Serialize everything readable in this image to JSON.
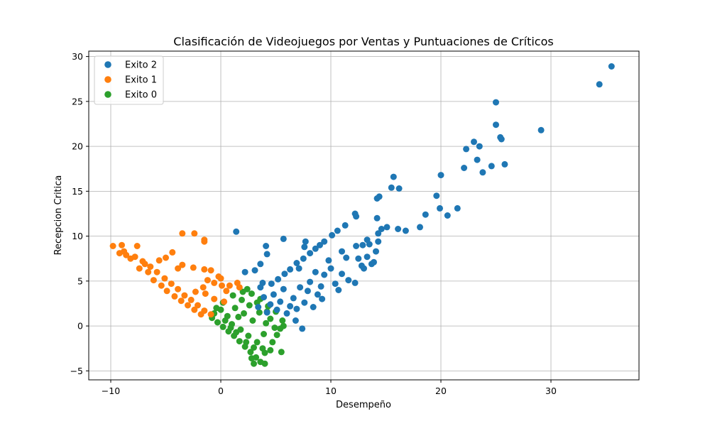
{
  "chart_data": {
    "type": "scatter",
    "title": "Clasificación de Videojuegos por Ventas y Puntuaciones de Críticos",
    "xlabel": "Desempeño",
    "ylabel": "Recepcion Critica",
    "xlim": [
      -12,
      38
    ],
    "ylim": [
      -6,
      30.6
    ],
    "xticks": [
      -10,
      0,
      10,
      20,
      30
    ],
    "yticks": [
      -5,
      0,
      5,
      10,
      15,
      20,
      25,
      30
    ],
    "grid": true,
    "legend_position": "top-left",
    "series": [
      {
        "name": "Exito 2",
        "color": "#1f77b4",
        "points": [
          [
            35.5,
            28.9
          ],
          [
            34.4,
            26.9
          ],
          [
            29.1,
            21.8
          ],
          [
            25.0,
            24.9
          ],
          [
            25.0,
            22.4
          ],
          [
            25.4,
            21.0
          ],
          [
            25.5,
            20.8
          ],
          [
            23.0,
            20.5
          ],
          [
            22.3,
            19.7
          ],
          [
            23.5,
            20.0
          ],
          [
            22.1,
            17.6
          ],
          [
            23.3,
            18.5
          ],
          [
            24.6,
            17.8
          ],
          [
            25.8,
            18.0
          ],
          [
            23.8,
            17.1
          ],
          [
            20.0,
            16.8
          ],
          [
            19.6,
            14.5
          ],
          [
            19.9,
            13.1
          ],
          [
            20.6,
            12.3
          ],
          [
            21.5,
            13.1
          ],
          [
            18.6,
            12.4
          ],
          [
            18.1,
            11.0
          ],
          [
            16.8,
            10.6
          ],
          [
            16.1,
            10.8
          ],
          [
            15.7,
            16.6
          ],
          [
            15.5,
            15.4
          ],
          [
            16.2,
            15.3
          ],
          [
            14.4,
            14.4
          ],
          [
            14.2,
            14.2
          ],
          [
            14.2,
            12.0
          ],
          [
            15.1,
            11.0
          ],
          [
            14.6,
            10.8
          ],
          [
            14.3,
            10.3
          ],
          [
            14.3,
            9.4
          ],
          [
            12.2,
            12.5
          ],
          [
            12.3,
            12.2
          ],
          [
            11.3,
            11.2
          ],
          [
            10.6,
            10.6
          ],
          [
            10.1,
            10.1
          ],
          [
            13.3,
            9.6
          ],
          [
            13.5,
            9.1
          ],
          [
            12.9,
            9.0
          ],
          [
            12.3,
            8.9
          ],
          [
            11.0,
            8.3
          ],
          [
            11.4,
            7.6
          ],
          [
            12.5,
            7.5
          ],
          [
            13.3,
            7.7
          ],
          [
            14.1,
            8.3
          ],
          [
            13.0,
            6.4
          ],
          [
            13.7,
            6.9
          ],
          [
            9.4,
            9.4
          ],
          [
            9.0,
            9.0
          ],
          [
            8.6,
            8.6
          ],
          [
            8.1,
            8.1
          ],
          [
            7.5,
            7.5
          ],
          [
            6.9,
            7.0
          ],
          [
            6.3,
            6.3
          ],
          [
            5.8,
            5.8
          ],
          [
            5.2,
            5.2
          ],
          [
            4.6,
            4.7
          ],
          [
            3.8,
            4.8
          ],
          [
            7.7,
            9.4
          ],
          [
            7.6,
            8.8
          ],
          [
            5.7,
            9.7
          ],
          [
            4.1,
            8.9
          ],
          [
            4.2,
            8.0
          ],
          [
            3.6,
            6.9
          ],
          [
            2.2,
            6.0
          ],
          [
            3.1,
            6.2
          ],
          [
            1.4,
            10.5
          ],
          [
            12.2,
            4.8
          ],
          [
            11.0,
            5.8
          ],
          [
            10.7,
            4.0
          ],
          [
            10.0,
            6.4
          ],
          [
            9.8,
            7.3
          ],
          [
            9.4,
            5.7
          ],
          [
            9.1,
            4.4
          ],
          [
            8.8,
            3.5
          ],
          [
            8.1,
            4.9
          ],
          [
            7.9,
            3.9
          ],
          [
            7.6,
            2.6
          ],
          [
            7.2,
            4.3
          ],
          [
            6.9,
            1.9
          ],
          [
            6.6,
            3.1
          ],
          [
            6.3,
            2.2
          ],
          [
            6.0,
            1.4
          ],
          [
            5.7,
            4.1
          ],
          [
            5.4,
            2.7
          ],
          [
            5.1,
            1.8
          ],
          [
            4.8,
            3.5
          ],
          [
            4.5,
            2.4
          ],
          [
            4.2,
            1.5
          ],
          [
            3.9,
            3.2
          ],
          [
            3.6,
            4.3
          ],
          [
            3.4,
            2.1
          ],
          [
            7.4,
            -0.3
          ],
          [
            6.8,
            0.6
          ],
          [
            8.4,
            2.1
          ],
          [
            9.2,
            3.0
          ],
          [
            10.4,
            4.7
          ],
          [
            11.6,
            5.1
          ],
          [
            12.8,
            6.7
          ],
          [
            13.9,
            7.1
          ],
          [
            8.6,
            6.0
          ],
          [
            7.1,
            6.4
          ]
        ]
      },
      {
        "name": "Exito 1",
        "color": "#ff7f0e",
        "points": [
          [
            -9.8,
            8.9
          ],
          [
            -9.0,
            9.0
          ],
          [
            -9.2,
            8.1
          ],
          [
            -8.8,
            8.3
          ],
          [
            -7.6,
            8.9
          ],
          [
            -7.8,
            7.7
          ],
          [
            -7.1,
            7.2
          ],
          [
            -6.4,
            6.6
          ],
          [
            -5.8,
            6.0
          ],
          [
            -5.1,
            5.3
          ],
          [
            -4.5,
            4.7
          ],
          [
            -3.9,
            4.1
          ],
          [
            -3.3,
            3.4
          ],
          [
            -2.7,
            2.9
          ],
          [
            -2.1,
            2.3
          ],
          [
            -1.5,
            1.7
          ],
          [
            -0.9,
            1.3
          ],
          [
            -5.0,
            7.6
          ],
          [
            -5.6,
            7.3
          ],
          [
            -4.4,
            8.2
          ],
          [
            -3.5,
            10.3
          ],
          [
            -2.4,
            10.3
          ],
          [
            -1.5,
            9.4
          ],
          [
            -1.5,
            9.6
          ],
          [
            -3.5,
            6.8
          ],
          [
            -3.9,
            6.4
          ],
          [
            -2.5,
            6.5
          ],
          [
            -1.5,
            6.3
          ],
          [
            -0.9,
            6.2
          ],
          [
            -1.2,
            5.1
          ],
          [
            -1.6,
            4.3
          ],
          [
            -2.3,
            3.8
          ],
          [
            -0.2,
            5.5
          ],
          [
            0.0,
            5.3
          ],
          [
            -0.6,
            4.8
          ],
          [
            -1.4,
            3.6
          ],
          [
            -0.6,
            3.0
          ],
          [
            0.1,
            4.5
          ],
          [
            0.5,
            3.9
          ],
          [
            0.8,
            4.5
          ],
          [
            1.5,
            4.8
          ],
          [
            1.7,
            4.3
          ],
          [
            0.3,
            2.7
          ],
          [
            -6.6,
            6.0
          ],
          [
            -6.1,
            5.1
          ],
          [
            -5.4,
            4.5
          ],
          [
            -4.9,
            3.9
          ],
          [
            -4.2,
            3.3
          ],
          [
            -3.6,
            2.8
          ],
          [
            -3.0,
            2.3
          ],
          [
            -2.4,
            1.8
          ],
          [
            -1.8,
            1.3
          ],
          [
            -7.4,
            6.4
          ],
          [
            -8.2,
            7.5
          ],
          [
            -8.6,
            7.9
          ],
          [
            -6.9,
            6.9
          ]
        ]
      },
      {
        "name": "Exito 0",
        "color": "#2ca02c",
        "points": [
          [
            -0.8,
            0.9
          ],
          [
            -0.3,
            0.4
          ],
          [
            0.2,
            -0.1
          ],
          [
            0.7,
            -0.6
          ],
          [
            1.2,
            -1.1
          ],
          [
            1.7,
            -1.7
          ],
          [
            2.2,
            -2.3
          ],
          [
            2.7,
            -2.9
          ],
          [
            3.2,
            -3.5
          ],
          [
            3.6,
            -4.0
          ],
          [
            4.0,
            -4.2
          ],
          [
            3.0,
            -4.2
          ],
          [
            2.8,
            -3.6
          ],
          [
            1.9,
            2.9
          ],
          [
            2.8,
            3.6
          ],
          [
            3.6,
            3.0
          ],
          [
            4.3,
            2.2
          ],
          [
            5.0,
            1.6
          ],
          [
            5.6,
            0.6
          ],
          [
            5.4,
            -0.3
          ],
          [
            5.5,
            -2.9
          ],
          [
            4.5,
            -2.7
          ],
          [
            4.0,
            -3.0
          ],
          [
            4.7,
            -1.8
          ],
          [
            5.1,
            -1.0
          ],
          [
            1.1,
            3.4
          ],
          [
            0.2,
            2.6
          ],
          [
            -0.4,
            2.0
          ],
          [
            -0.6,
            1.4
          ],
          [
            0.6,
            1.1
          ],
          [
            1.3,
            2.0
          ],
          [
            2.1,
            1.4
          ],
          [
            2.9,
            0.6
          ],
          [
            3.5,
            1.5
          ],
          [
            4.1,
            0.3
          ],
          [
            1.0,
            0.2
          ],
          [
            1.8,
            -0.4
          ],
          [
            2.5,
            -1.1
          ],
          [
            3.3,
            -1.8
          ],
          [
            3.9,
            -0.9
          ],
          [
            2.6,
            2.3
          ],
          [
            3.3,
            2.6
          ],
          [
            1.6,
            1.0
          ],
          [
            0.4,
            0.6
          ],
          [
            4.5,
            0.8
          ],
          [
            2.3,
            -1.8
          ],
          [
            3.0,
            -2.4
          ],
          [
            1.4,
            -0.7
          ],
          [
            0.9,
            -0.2
          ],
          [
            4.9,
            -0.2
          ],
          [
            5.7,
            0.0
          ],
          [
            2.0,
            3.8
          ],
          [
            2.4,
            4.1
          ],
          [
            4.2,
            1.6
          ],
          [
            3.8,
            -2.5
          ],
          [
            0.0,
            1.8
          ]
        ]
      }
    ]
  }
}
